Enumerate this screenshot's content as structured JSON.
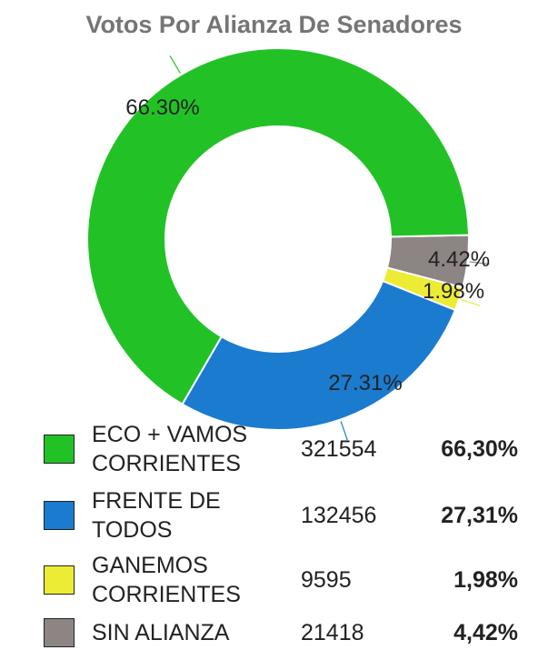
{
  "title": "Votos Por Alianza De Senadores",
  "chart_data": {
    "type": "pie",
    "title": "Votos Por Alianza De Senadores",
    "series": [
      {
        "name": "ECO + VAMOS CORRIENTES",
        "value": 321554,
        "percent_label": "66.30%",
        "color": "#22c227"
      },
      {
        "name": "FRENTE DE TODOS",
        "value": 132456,
        "percent_label": "27.31%",
        "color": "#1b7bcf"
      },
      {
        "name": "GANEMOS CORRIENTES",
        "value": 9595,
        "percent_label": "1.98%",
        "color": "#ecec34"
      },
      {
        "name": "SIN ALIANZA",
        "value": 21418,
        "percent_label": "4.42%",
        "color": "#8c8584"
      }
    ]
  },
  "legend": [
    {
      "name_line1": "ECO + VAMOS",
      "name_line2": "CORRIENTES",
      "votes": "321554",
      "pct": "66,30%",
      "color": "#22c227"
    },
    {
      "name_line1": "FRENTE DE",
      "name_line2": "TODOS",
      "votes": "132456",
      "pct": "27,31%",
      "color": "#1b7bcf"
    },
    {
      "name_line1": "GANEMOS",
      "name_line2": "CORRIENTES",
      "votes": "9595",
      "pct": "1,98%",
      "color": "#ecec34"
    },
    {
      "name_line1": "SIN ALIANZA",
      "name_line2": "",
      "votes": "21418",
      "pct": "4,42%",
      "color": "#8c8584"
    }
  ]
}
